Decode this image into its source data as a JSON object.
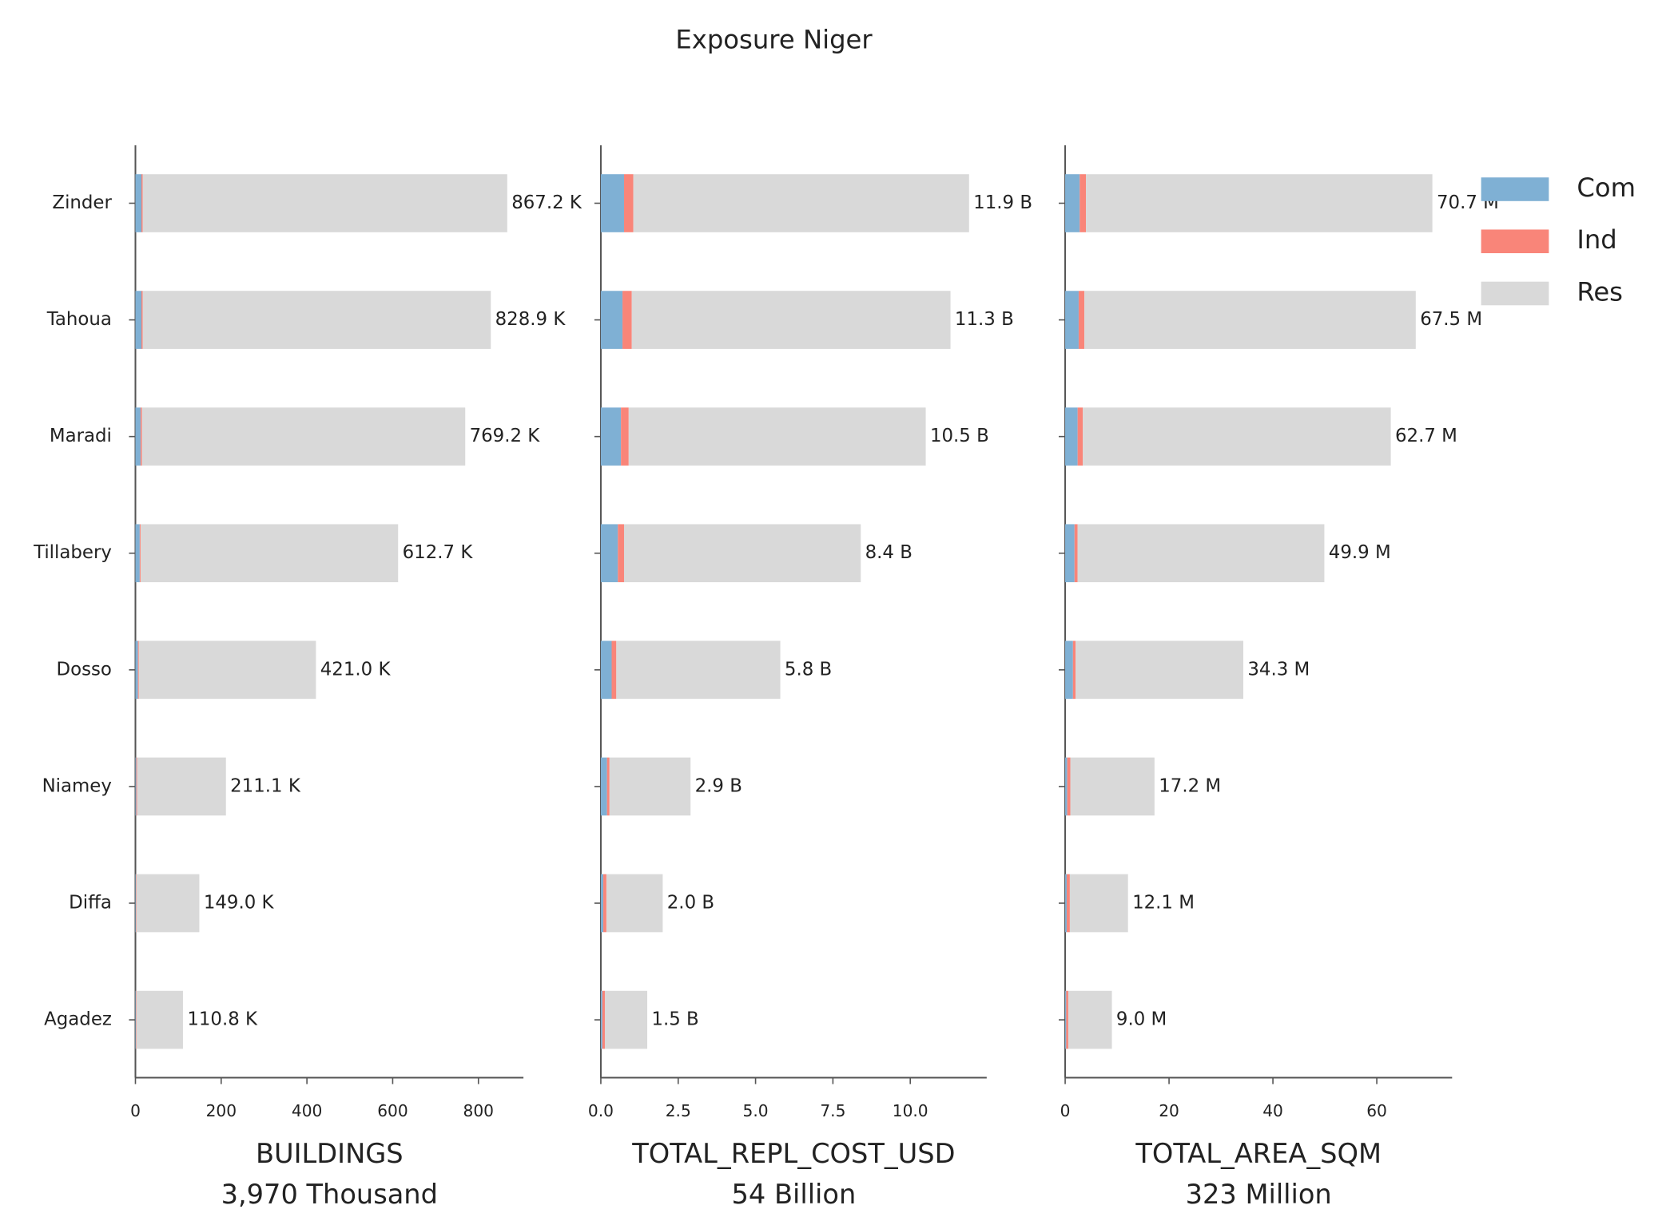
{
  "chart_data": {
    "type": "bar",
    "orientation": "horizontal",
    "stacked": true,
    "title": "Exposure Niger",
    "categories": [
      "Zinder",
      "Tahoua",
      "Maradi",
      "Tillabery",
      "Dosso",
      "Niamey",
      "Diffa",
      "Agadez"
    ],
    "series": [
      {
        "name": "Com",
        "color": "#7fb0d4"
      },
      {
        "name": "Ind",
        "color": "#f98579"
      },
      {
        "name": "Res",
        "color": "#d9d9d9"
      }
    ],
    "legend": "upper right",
    "panels": [
      {
        "xlabel": [
          "BUILDINGS",
          "3,970 Thousand"
        ],
        "xlim": [
          0,
          905
        ],
        "xticks": [
          0,
          200,
          400,
          600,
          800
        ],
        "values": [
          [
            14,
            14,
            12,
            10,
            6,
            2,
            1,
            1
          ],
          [
            3,
            3,
            3,
            2,
            2,
            2,
            1,
            1
          ],
          [
            850.2,
            811.9,
            754.2,
            600.7,
            413.0,
            207.1,
            147.0,
            108.8
          ]
        ],
        "totals": [
          867.2,
          828.9,
          769.2,
          612.7,
          421.0,
          211.1,
          149.0,
          110.8
        ],
        "total_labels": [
          "867.2 K",
          "828.9 K",
          "769.2 K",
          "612.7 K",
          "421.0 K",
          "211.1 K",
          "149.0 K",
          "110.8 K"
        ]
      },
      {
        "xlabel": [
          "TOTAL_REPL_COST_USD",
          "54 Billion"
        ],
        "xlim": [
          0,
          12.47
        ],
        "xticks": [
          {
            "value": 0,
            "label": "0.0"
          },
          2.5,
          {
            "value": 5,
            "label": "5.0"
          },
          7.5,
          {
            "value": 10,
            "label": "10.0"
          }
        ],
        "values": [
          [
            0.75,
            0.7,
            0.65,
            0.55,
            0.35,
            0.2,
            0.08,
            0.05
          ],
          [
            0.3,
            0.3,
            0.25,
            0.2,
            0.15,
            0.08,
            0.1,
            0.08
          ],
          [
            10.85,
            10.3,
            9.6,
            7.65,
            5.3,
            2.62,
            1.82,
            1.37
          ]
        ],
        "totals": [
          11.9,
          11.3,
          10.5,
          8.4,
          5.8,
          2.9,
          2.0,
          1.5
        ],
        "total_labels": [
          "11.9 B",
          "11.3 B",
          "10.5 B",
          "8.4 B",
          "5.8 B",
          "2.9 B",
          "2.0 B",
          "1.5 B"
        ]
      },
      {
        "xlabel": [
          "TOTAL_AREA_SQM",
          "323 Million"
        ],
        "xlim": [
          0,
          74.5
        ],
        "xticks": [
          0,
          20,
          40,
          60
        ],
        "values": [
          [
            2.8,
            2.6,
            2.4,
            1.8,
            1.5,
            0.4,
            0.3,
            0.2
          ],
          [
            1.2,
            1.1,
            1.0,
            0.6,
            0.5,
            0.6,
            0.6,
            0.4
          ],
          [
            66.7,
            63.8,
            59.3,
            47.5,
            32.3,
            16.2,
            11.2,
            8.4
          ]
        ],
        "totals": [
          70.7,
          67.5,
          62.7,
          49.9,
          34.3,
          17.2,
          12.1,
          9.0
        ],
        "total_labels": [
          "70.7 M",
          "67.5 M",
          "62.7 M",
          "49.9 M",
          "34.3 M",
          "17.2 M",
          "12.1 M",
          "9.0 M"
        ]
      }
    ]
  }
}
